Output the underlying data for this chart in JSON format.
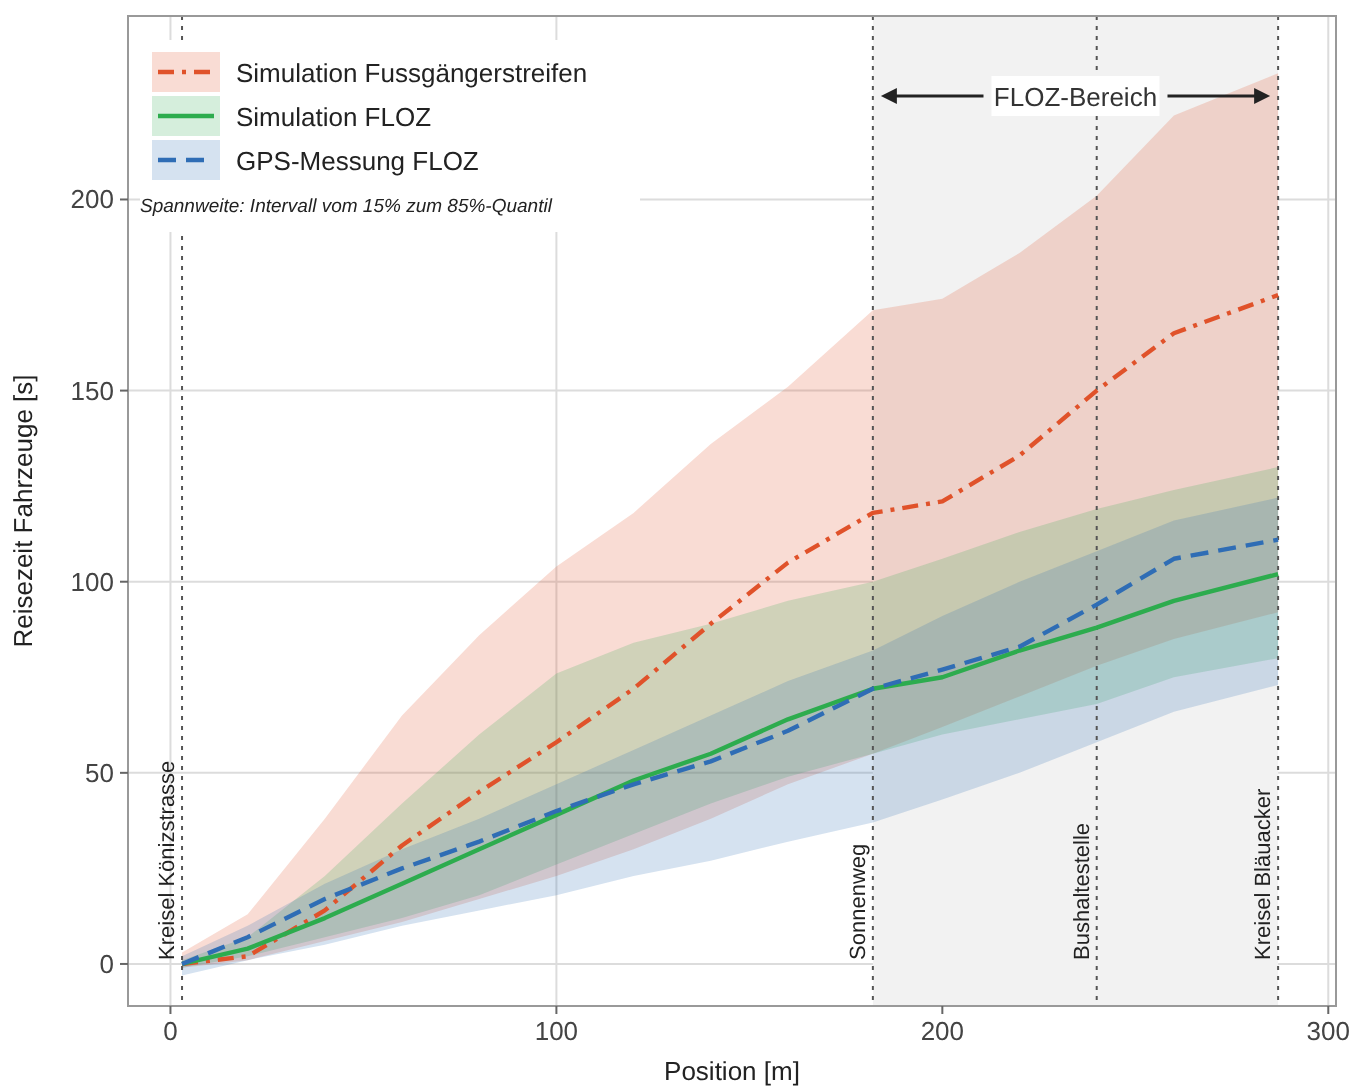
{
  "chart_data": {
    "type": "line",
    "xlabel": "Position [m]",
    "ylabel": "Reisezeit Fahrzeuge [s]",
    "xlim": [
      -11,
      302
    ],
    "ylim": [
      -11,
      248
    ],
    "xticks": [
      0,
      100,
      200,
      300
    ],
    "yticks": [
      0,
      50,
      100,
      150,
      200
    ],
    "grid": true,
    "legend": "top left",
    "series": [
      {
        "name": "Simulation Fussgängerstreifen",
        "color": "#e0522a",
        "line_style": "dashdot",
        "x": [
          3,
          20,
          40,
          60,
          80,
          100,
          120,
          140,
          160,
          182,
          200,
          220,
          240,
          260,
          287
        ],
        "values": [
          0,
          2,
          14,
          31,
          45,
          58,
          72,
          89,
          105,
          118,
          121,
          133,
          150,
          165,
          175
        ],
        "lower": [
          -1,
          1,
          6,
          11,
          17,
          23,
          30,
          38,
          47,
          55,
          62,
          70,
          78,
          85,
          92
        ],
        "upper": [
          3,
          13,
          38,
          65,
          86,
          104,
          118,
          136,
          151,
          171,
          174,
          186,
          201,
          222,
          233
        ]
      },
      {
        "name": "Simulation FLOZ",
        "color": "#2dac4e",
        "line_style": "solid",
        "x": [
          3,
          20,
          40,
          60,
          80,
          100,
          120,
          140,
          160,
          182,
          200,
          220,
          240,
          260,
          287
        ],
        "values": [
          0,
          4,
          12,
          21,
          30,
          39,
          48,
          55,
          64,
          72,
          75,
          82,
          88,
          95,
          102
        ],
        "lower": [
          -1,
          2,
          7,
          12,
          18,
          26,
          34,
          42,
          49,
          55,
          60,
          64,
          68,
          75,
          80
        ],
        "upper": [
          1,
          7,
          23,
          42,
          60,
          76,
          84,
          89,
          95,
          100,
          106,
          113,
          119,
          124,
          130
        ]
      },
      {
        "name": "GPS-Messung FLOZ",
        "color": "#2f6db5",
        "line_style": "dashed",
        "x": [
          3,
          20,
          40,
          60,
          80,
          100,
          120,
          140,
          160,
          182,
          200,
          220,
          240,
          260,
          287
        ],
        "values": [
          0,
          7,
          17,
          25,
          32,
          40,
          47,
          53,
          61,
          72,
          77,
          83,
          94,
          106,
          111
        ],
        "lower": [
          -3,
          1,
          5,
          10,
          14,
          18,
          23,
          27,
          32,
          37,
          43,
          50,
          58,
          66,
          73
        ],
        "upper": [
          2,
          10,
          21,
          30,
          38,
          47,
          56,
          65,
          74,
          82,
          91,
          100,
          108,
          116,
          122
        ]
      }
    ],
    "ref_lines": [
      {
        "axis": "x",
        "value": 3,
        "label": "Kreisel Könizstrasse",
        "line_style": "dotted"
      },
      {
        "axis": "x",
        "value": 182,
        "label": "Sonnenweg",
        "line_style": "dotted"
      },
      {
        "axis": "x",
        "value": 240,
        "label": "Bushaltestelle",
        "line_style": "dotted"
      },
      {
        "axis": "x",
        "value": 287,
        "label": "Kreisel Bläuacker",
        "line_style": "dotted"
      }
    ],
    "bands": [
      {
        "axis": "x",
        "from": 182,
        "to": 287,
        "label": "FLOZ-Bereich",
        "color": "#f2f2f2"
      }
    ],
    "annotations": [
      "Spannweite: Intervall vom 15% zum 85%-Quantil"
    ]
  }
}
